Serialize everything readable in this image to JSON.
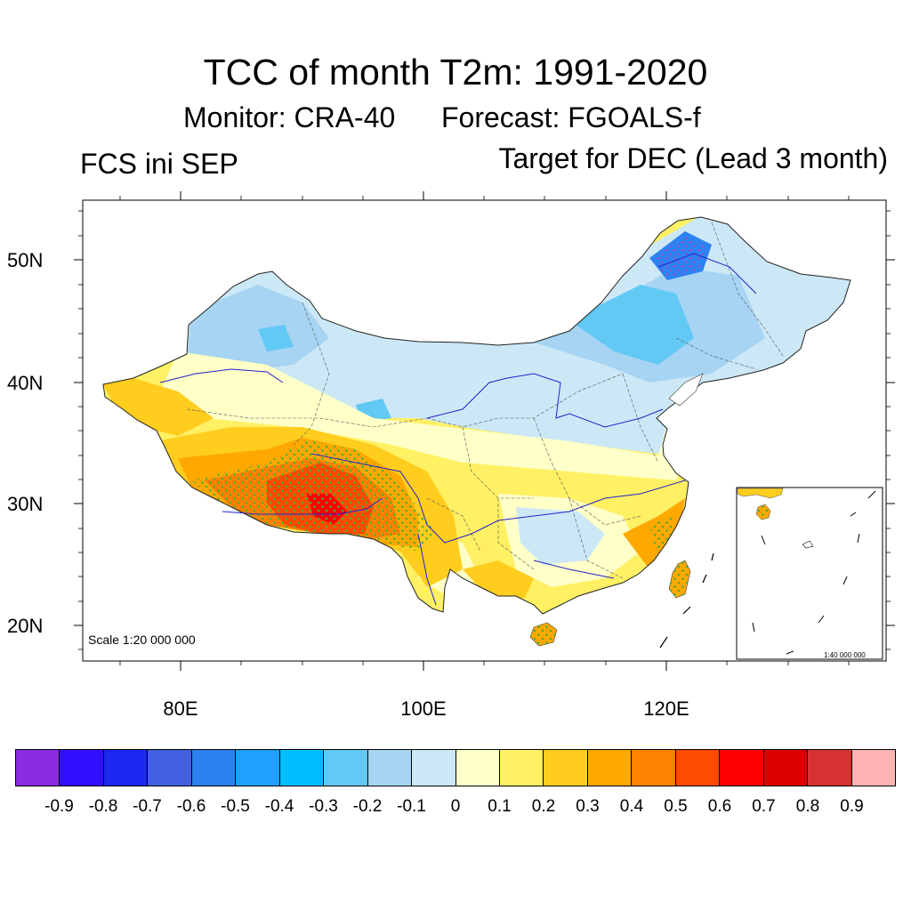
{
  "title": "TCC of month T2m: 1991-2020",
  "subtitle": {
    "monitor": "Monitor: CRA-40",
    "forecast": "Forecast: FGOALS-f"
  },
  "left_subtitle": "FCS ini SEP",
  "right_subtitle": "Target for DEC (Lead 3 month)",
  "map": {
    "lat_labels": [
      "50N",
      "40N",
      "30N",
      "20N"
    ],
    "lon_labels": [
      "80E",
      "100E",
      "120E"
    ],
    "scale_text": "Scale 1:20 000 000",
    "inset_scale_text": "1:40 000 000",
    "lon_range": [
      72,
      138
    ],
    "lat_range": [
      16.5,
      54.5
    ],
    "stippling": "green dots mark significant correlation"
  },
  "colorbar": {
    "colors": [
      "#8a2be2",
      "#3010ff",
      "#1a28f0",
      "#4060e0",
      "#2c82f0",
      "#1ea0ff",
      "#00bfff",
      "#62c8f4",
      "#a6d4f2",
      "#cce8f6",
      "#ffffc8",
      "#fff064",
      "#ffcd1e",
      "#ffa800",
      "#ff8200",
      "#ff4b00",
      "#ff0000",
      "#dc0000",
      "#d73232",
      "#ffb4b4"
    ],
    "labels": [
      "-0.9",
      "-0.8",
      "-0.7",
      "-0.6",
      "-0.5",
      "-0.4",
      "-0.3",
      "-0.2",
      "-0.1",
      "0",
      "0.1",
      "0.2",
      "0.3",
      "0.4",
      "0.5",
      "0.6",
      "0.7",
      "0.8",
      "0.9"
    ]
  }
}
